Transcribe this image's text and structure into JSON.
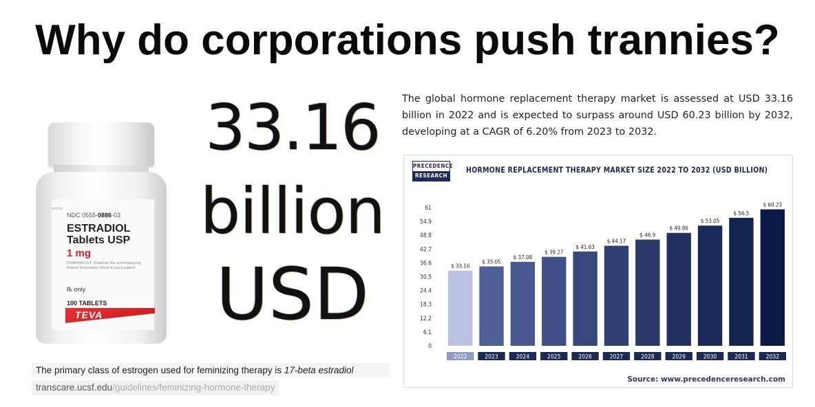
{
  "headline": "Why do corporations push trannies?",
  "bottle": {
    "ndc_prefix": "NDC 0555-",
    "ndc_bold": "0886",
    "ndc_suffix": "-02",
    "drug_name_line1": "ESTRADIOL",
    "drug_name_line2": "Tablets USP",
    "dose": "1 mg",
    "pharmacist_note": "PHARMACIST: Dispense the accompanying Patient Information Sheet to each patient.",
    "rx_only": "℞ only",
    "tablet_count": "100 TABLETS",
    "brand": "TEVA"
  },
  "big_figure": {
    "number": "33.16",
    "unit": "billion",
    "currency": "USD"
  },
  "caption": {
    "text": "The primary class of estrogen used for feminizing therapy is ",
    "emphasis": "17-beta estradiol"
  },
  "source_link": {
    "domain": "transcare.ucsf.edu",
    "path": "/guidelines/feminizing-hormone-therapy"
  },
  "market_text": "The global hormone replacement therapy market is assessed at USD 33.16 billion in 2022 and is expected to surpass around USD 60.23 billion by 2032, developing at a CAGR of 6.20% from 2023 to 2032.",
  "logo": {
    "line1": "PRECEDENCE",
    "line2": "RESEARCH"
  },
  "chart_source": "Source: www.precedenceresearch.com",
  "colors": {
    "bar_first": "#b9c2e0",
    "bar_dark": "#0b1a45",
    "axis_label_bg": "#1c2a55",
    "axis_label_bg_first": "#8f9bc8"
  },
  "chart_data": {
    "type": "bar",
    "title": "HORMONE REPLACEMENT THERAPY MARKET SIZE 2022 TO 2032 (USD BILLION)",
    "categories": [
      "2022",
      "2023",
      "2024",
      "2025",
      "2026",
      "2027",
      "2028",
      "2029",
      "2030",
      "2031",
      "2032"
    ],
    "values": [
      33.16,
      35.05,
      37.08,
      39.27,
      41.63,
      44.17,
      46.9,
      49.86,
      53.05,
      56.5,
      60.23
    ],
    "data_labels": [
      "$ 33.16",
      "$ 35.05",
      "$ 37.08",
      "$ 39.27",
      "$ 41.63",
      "$ 44.17",
      "$ 46.9",
      "$ 49.86",
      "$ 53.05",
      "$ 56.5",
      "$ 60.23"
    ],
    "y_ticks": [
      "0",
      "6.1",
      "12.2",
      "18.3",
      "24.4",
      "30.5",
      "36.6",
      "42.7",
      "48.8",
      "54.9",
      "61"
    ],
    "ylim": [
      0,
      61
    ],
    "xlabel": "",
    "ylabel": "",
    "grid": false,
    "legend": "none"
  }
}
